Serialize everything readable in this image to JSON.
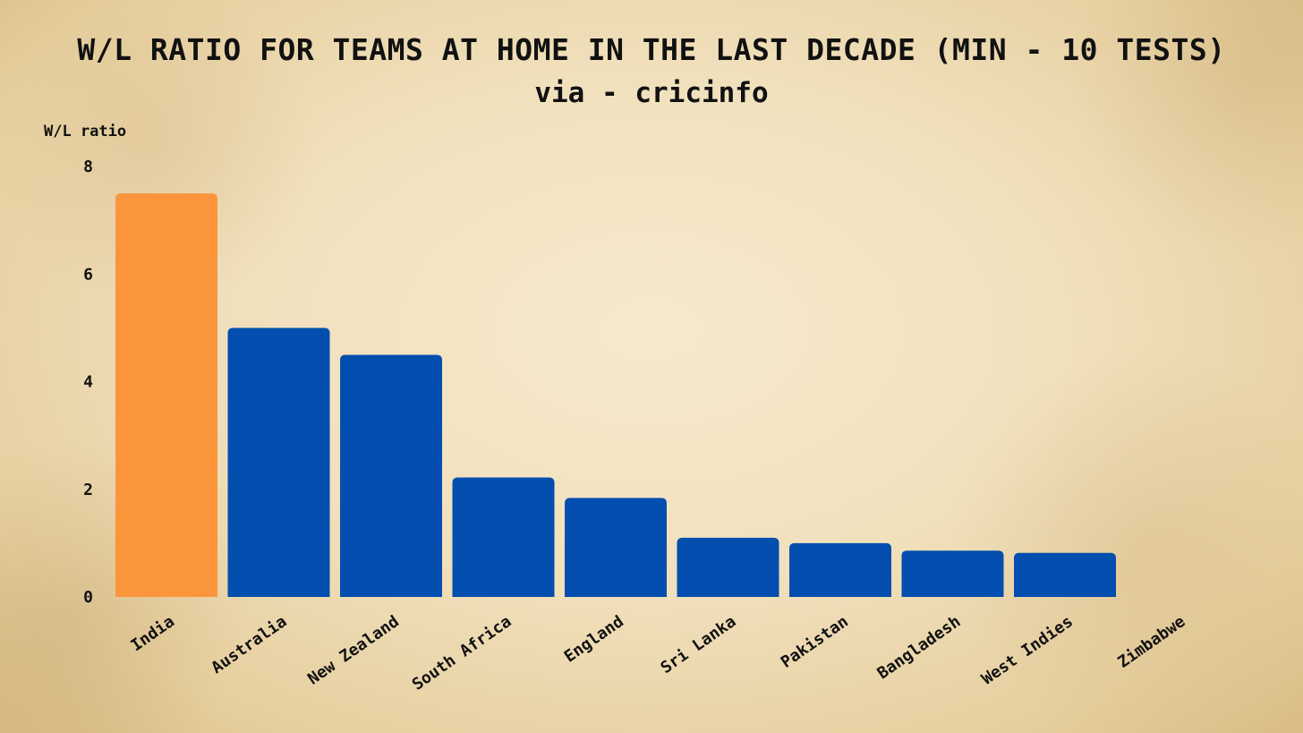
{
  "chart_data": {
    "type": "bar",
    "title": "W/L RATIO FOR TEAMS AT HOME IN THE LAST DECADE (MIN - 10 TESTS)",
    "subtitle": "via - cricinfo",
    "ylabel": "W/L ratio",
    "xlabel": "",
    "ylim": [
      0,
      8
    ],
    "yticks": [
      "0",
      "2",
      "4",
      "6",
      "8"
    ],
    "grid": false,
    "categories": [
      "India",
      "Australia",
      "New Zealand",
      "South Africa",
      "England",
      "Sri Lanka",
      "Pakistan",
      "Bangladesh",
      "West Indies",
      "Zimbabwe"
    ],
    "values": [
      7.5,
      5.0,
      4.5,
      2.22,
      1.84,
      1.1,
      1.0,
      0.86,
      0.82,
      0
    ],
    "colors": {
      "highlight": "#fb953c",
      "default": "#034eaf"
    },
    "highlight_category": "India"
  }
}
